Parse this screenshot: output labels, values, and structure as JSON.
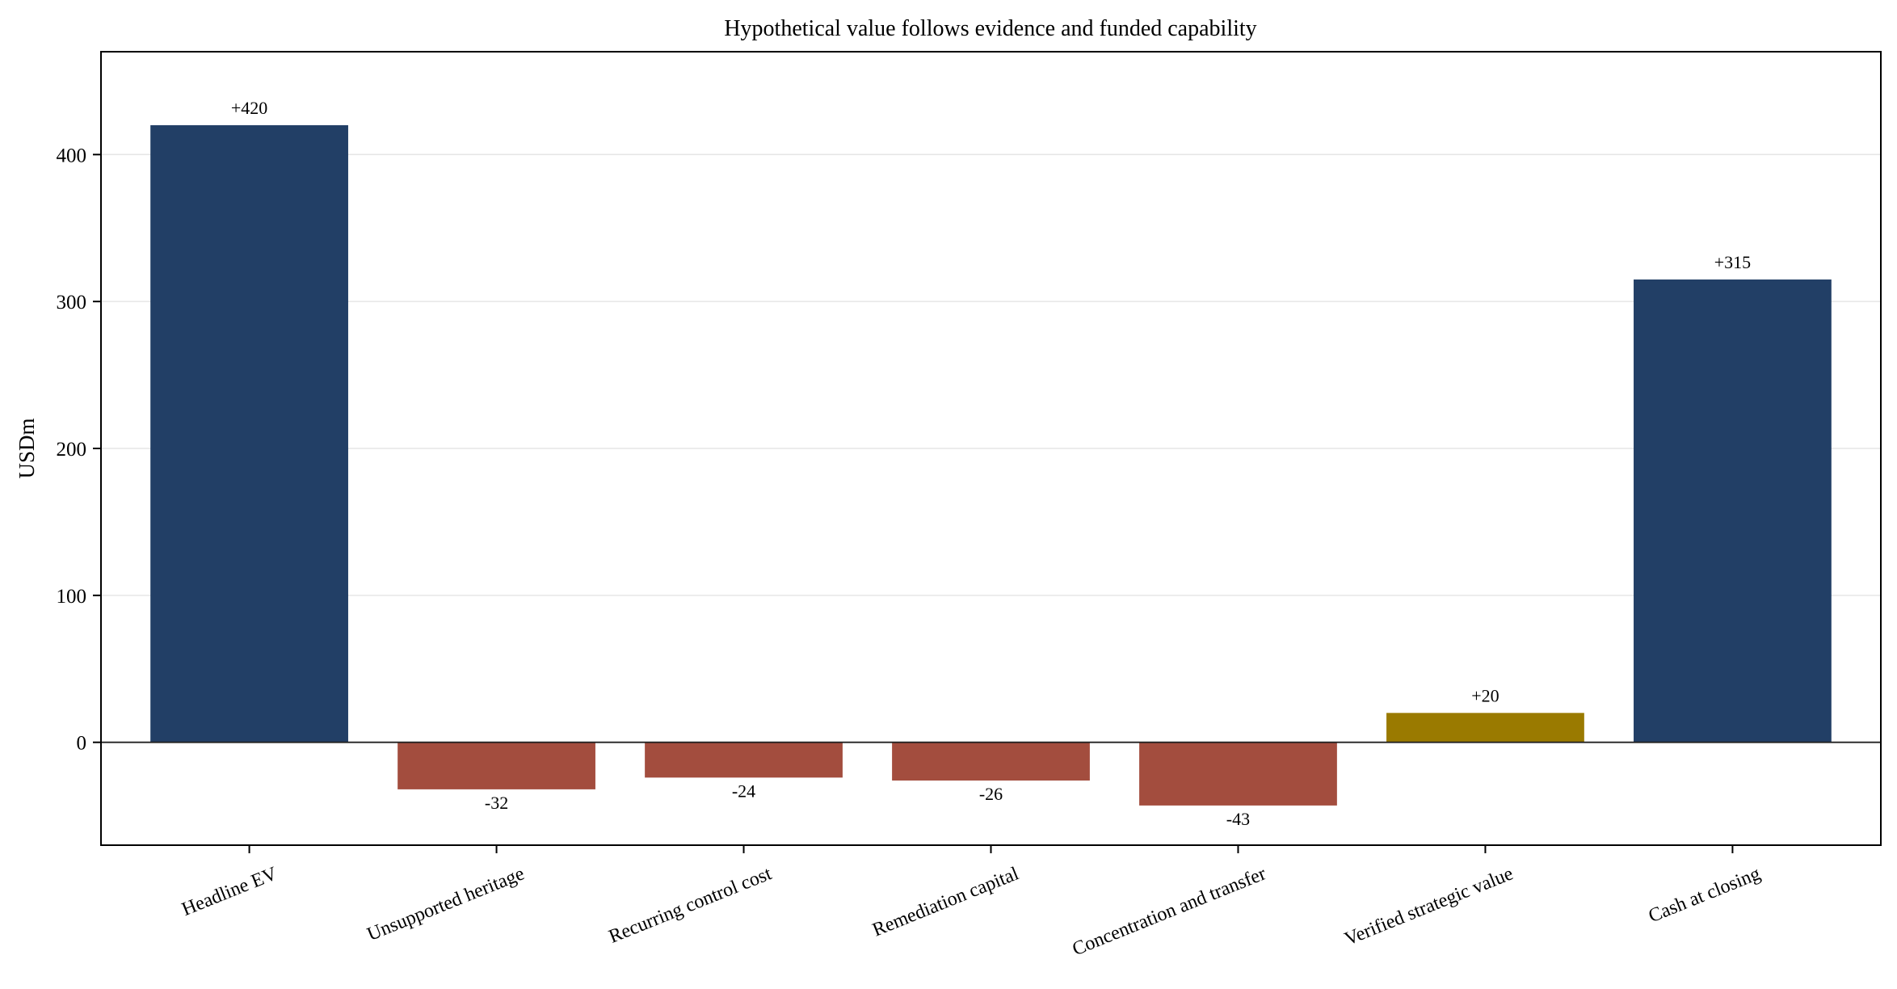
{
  "chart_data": {
    "type": "bar",
    "title": "Hypothetical value follows evidence and funded capability",
    "xlabel": "",
    "ylabel": "USDm",
    "categories": [
      "Headline EV",
      "Unsupported heritage",
      "Recurring control cost",
      "Remediation capital",
      "Concentration and transfer",
      "Verified strategic value",
      "Cash at closing"
    ],
    "values": [
      420,
      -32,
      -24,
      -26,
      -43,
      20,
      315
    ],
    "value_labels": [
      "+420",
      "-32",
      "-24",
      "-26",
      "-43",
      "+20",
      "+315"
    ],
    "bar_colors": [
      "#223f66",
      "#a34d3e",
      "#a34d3e",
      "#a34d3e",
      "#a34d3e",
      "#9a7a00",
      "#223f66"
    ],
    "ylim": [
      -70,
      470
    ],
    "yticks": [
      0,
      100,
      200,
      300,
      400
    ],
    "ytick_labels": [
      "0",
      "100",
      "200",
      "300",
      "400"
    ],
    "grid": "horizontal",
    "legend": "none"
  }
}
